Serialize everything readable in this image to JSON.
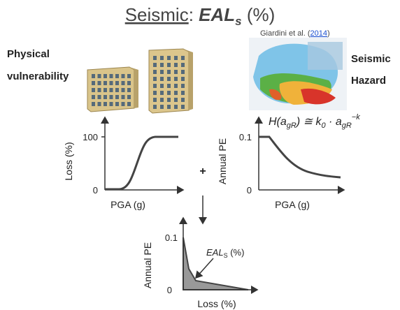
{
  "title": {
    "word": "Seismic",
    "separator": ":",
    "metric": "EAL",
    "subscript": "s",
    "unit": "(%)"
  },
  "left_label": {
    "line1": "Physical",
    "line2": "vulnerability"
  },
  "right_label": {
    "line1": "Seismic",
    "line2": "Hazard"
  },
  "citation": {
    "authors": "Giardini et al. (",
    "year": "2014",
    "close": ")"
  },
  "formula": {
    "parts": [
      "H(",
      "a",
      "gR",
      ") ≅ k",
      "0",
      " · a",
      "gR",
      "−k"
    ]
  },
  "plus": "+",
  "fragility": {
    "y_label": "Loss (%)",
    "x_label": "PGA (g)",
    "y_top": "100",
    "y_bottom": "0"
  },
  "hazard": {
    "y_label": "Annual PE",
    "x_label": "PGA (g)",
    "y_top": "0.1",
    "y_bottom": "0"
  },
  "loss": {
    "y_label": "Annual PE",
    "x_label": "Loss (%)",
    "y_top": "0.1",
    "y_bottom": "0",
    "annotation_metric": "EAL",
    "annotation_subscript": "S",
    "annotation_unit": "(%)"
  }
}
